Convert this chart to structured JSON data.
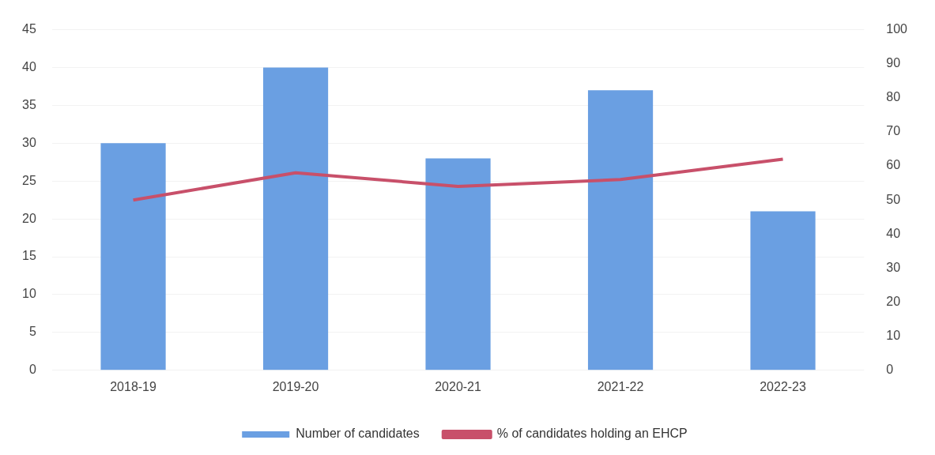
{
  "chart_data": {
    "type": "bar",
    "categories": [
      "2018-19",
      "2019-20",
      "2020-21",
      "2021-22",
      "2022-23"
    ],
    "series": [
      {
        "name": "Number of candidates",
        "color": "#6a9fe2",
        "values": [
          30,
          40,
          28,
          37,
          21
        ]
      },
      {
        "name": "% of candidates holding an EHCP",
        "type": "line",
        "axis": "y2",
        "color": "#c8506a",
        "values": [
          50,
          58,
          54,
          56,
          62
        ]
      }
    ],
    "ylim": [
      0,
      45
    ],
    "yticks": [
      0,
      5,
      10,
      15,
      20,
      25,
      30,
      35,
      40,
      45
    ],
    "y2lim": [
      0,
      100
    ],
    "y2ticks": [
      0,
      10,
      20,
      30,
      40,
      50,
      60,
      70,
      80,
      90,
      100
    ],
    "grid": "y",
    "legend": "bottom",
    "marker": "none"
  }
}
